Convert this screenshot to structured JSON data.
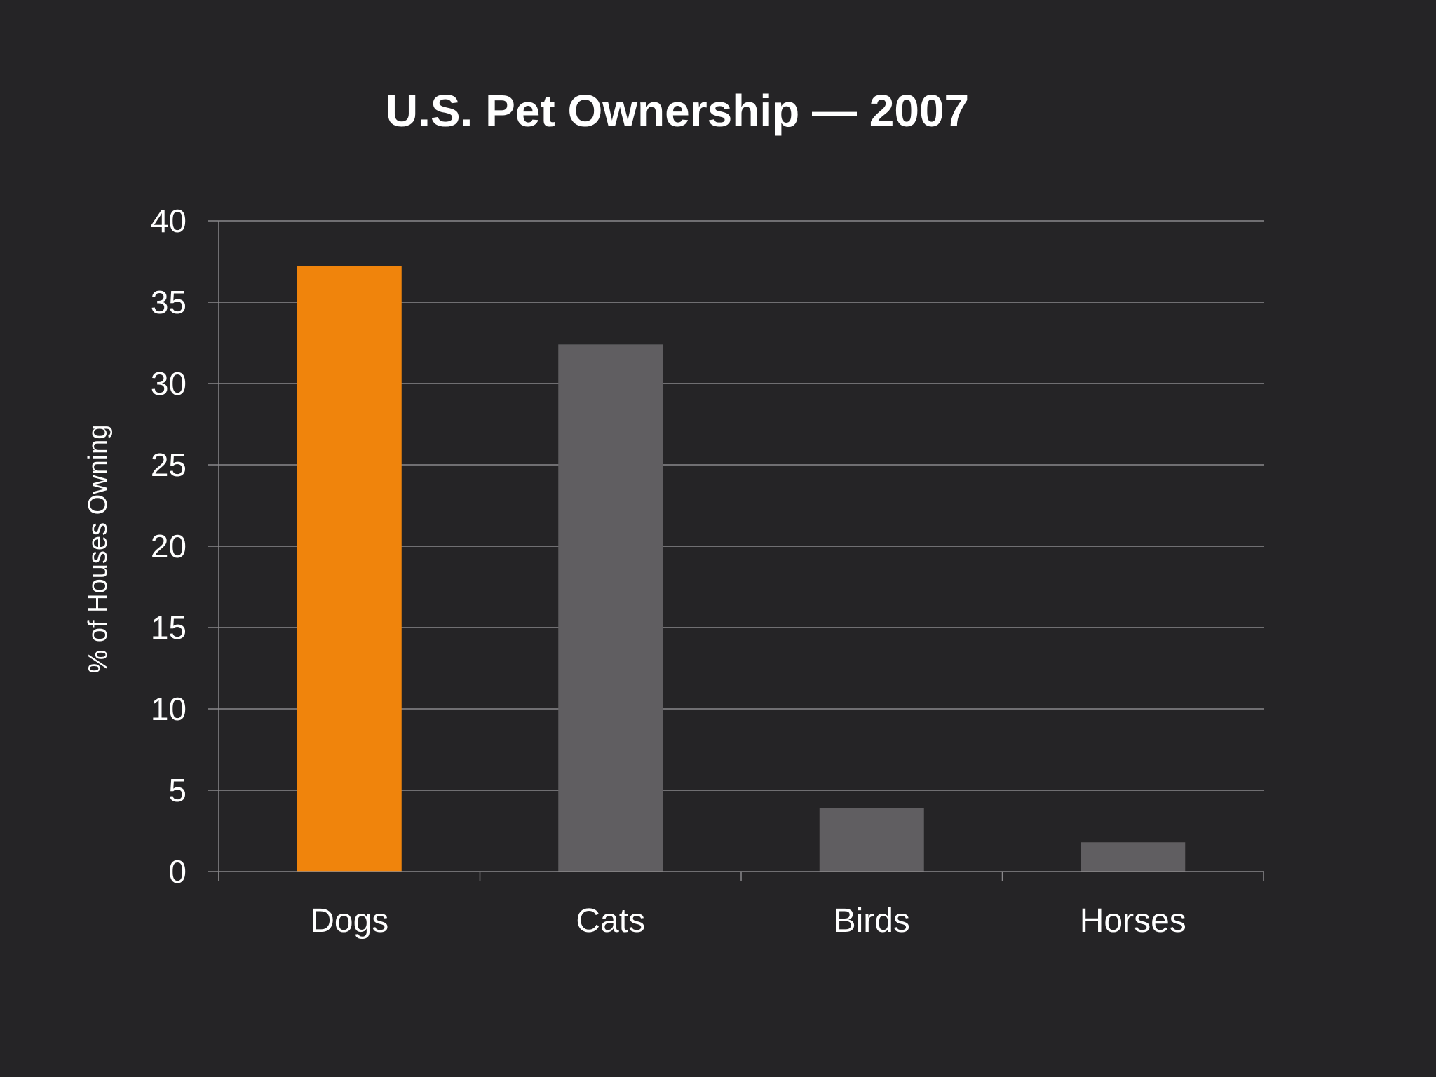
{
  "chart_data": {
    "type": "bar",
    "title": "U.S. Pet Ownership — 2007",
    "xlabel": "",
    "ylabel": "% of Houses Owning",
    "categories": [
      "Dogs",
      "Cats",
      "Birds",
      "Horses"
    ],
    "values": [
      37.2,
      32.4,
      3.9,
      1.8
    ],
    "ylim": [
      0,
      40
    ],
    "yticks": [
      "0",
      "5",
      "10",
      "15",
      "20",
      "25",
      "30",
      "35",
      "40"
    ],
    "grid": true,
    "legend": "none",
    "colors": {
      "highlight": "#f0840c",
      "default": "#605e61",
      "background": "#252426",
      "grid": "#8a888b",
      "text": "#ffffff"
    },
    "highlight_index": 0
  }
}
